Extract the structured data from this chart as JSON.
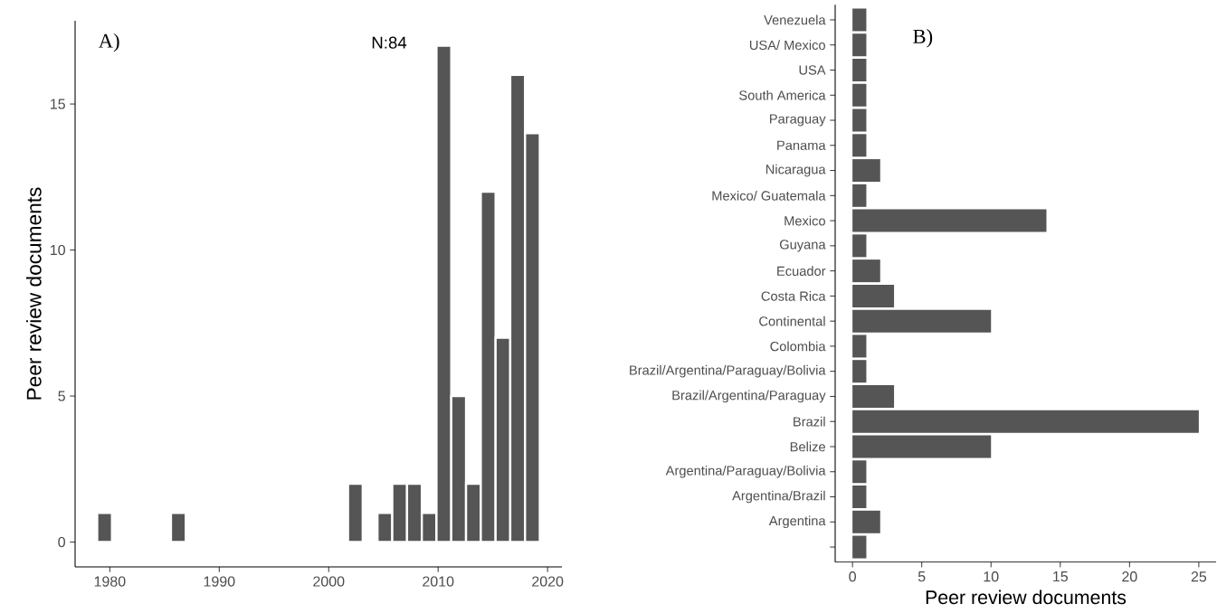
{
  "chart_data": [
    {
      "type": "histogram",
      "bins": [
        1978.85,
        1980.2,
        1981.55,
        1982.89,
        1984.24,
        1985.59,
        1986.94,
        1988.29,
        1989.63,
        1990.98,
        1992.33,
        1993.68,
        1995.03,
        1996.37,
        1997.72,
        1999.07,
        2000.42,
        2001.77,
        2003.11,
        2004.46,
        2005.81,
        2007.16,
        2008.51,
        2009.85,
        2011.2,
        2012.55,
        2013.9,
        2015.25,
        2016.59,
        2017.94,
        2019.29
      ],
      "values": [
        1,
        0,
        0,
        0,
        0,
        1,
        0,
        0,
        0,
        0,
        0,
        0,
        0,
        0,
        0,
        0,
        0,
        2,
        0,
        1,
        2,
        2,
        1,
        17,
        5,
        2,
        12,
        7,
        16,
        14
      ],
      "color": "#555555",
      "xlim": [
        1976.83,
        2021.31
      ],
      "ylim": [
        -0.85,
        17.85
      ],
      "xticks": [
        1980,
        1990,
        2000,
        2010,
        2020
      ],
      "yticks": [
        0,
        5,
        10,
        15
      ],
      "ylabel": "Peer review documents",
      "annotations": [
        "A)",
        "N:84"
      ]
    },
    {
      "type": "bar",
      "orientation": "horizontal",
      "categories": [
        "Venezuela",
        "USA/ Mexico",
        "USA",
        "South America",
        "Paraguay",
        "Panama",
        "Nicaragua",
        "Mexico/ Guatemala",
        "Mexico",
        "Guyana",
        "Ecuador",
        "Costa Rica",
        "Continental",
        "Colombia",
        "Brazil/Argentina/Paraguay/Bolivia",
        "Brazil/Argentina/Paraguay",
        "Brazil",
        "Belize",
        "Argentina/Paraguay/Bolivia",
        "Argentina/Brazil",
        "Argentina",
        null
      ],
      "values": [
        1,
        1,
        1,
        1,
        1,
        1,
        2,
        1,
        14,
        1,
        2,
        3,
        10,
        1,
        1,
        3,
        25,
        10,
        1,
        1,
        2,
        1
      ],
      "color": "#555555",
      "xlim": [
        -1.25,
        26.25
      ],
      "xticks": [
        0,
        5,
        10,
        15,
        20,
        25
      ],
      "xlabel": "Peer review documents",
      "annotations": [
        "B)"
      ]
    }
  ]
}
